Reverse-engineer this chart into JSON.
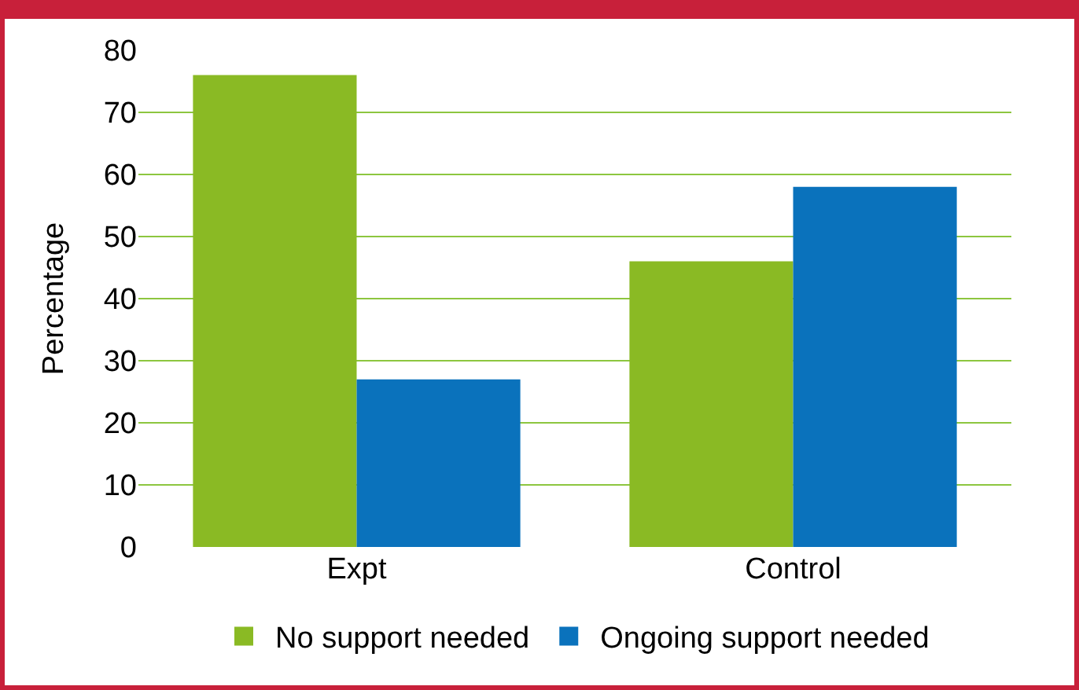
{
  "chart_data": {
    "type": "bar",
    "ylabel": "Percentage",
    "categories": [
      "Expt",
      "Control"
    ],
    "series": [
      {
        "name": "No support needed",
        "color": "#8aba24",
        "values": [
          76,
          46
        ]
      },
      {
        "name": "Ongoing support needed",
        "color": "#0a72bc",
        "values": [
          27,
          58
        ]
      }
    ],
    "ylim": [
      0,
      80
    ],
    "yticks": [
      0,
      10,
      20,
      30,
      40,
      50,
      60,
      70,
      80
    ],
    "grid": "y",
    "legend": "bottom"
  }
}
